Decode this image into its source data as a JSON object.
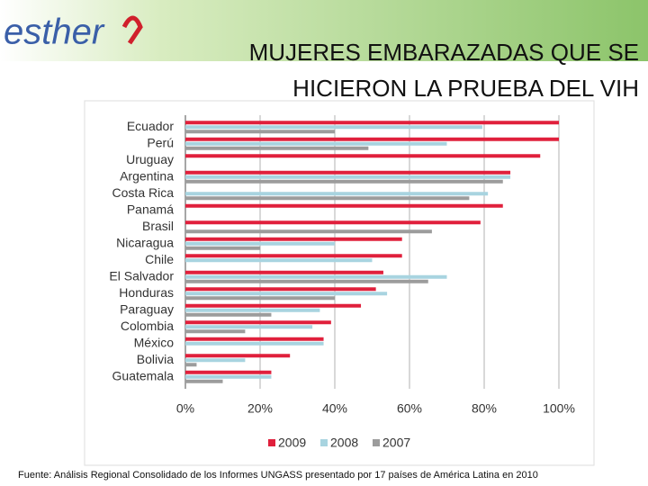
{
  "logo": "esther",
  "chart_data": {
    "type": "barh",
    "title": [
      "MUJERES EMBARAZADAS QUE SE",
      "HICIERON LA PRUEBA DEL VIH"
    ],
    "source": "Fuente: Análisis Regional Consolidado de los Informes UNGASS presentado por 17 países de América Latina en 2010",
    "categories": [
      "Ecuador",
      "Perú",
      "Uruguay",
      "Argentina",
      "Costa Rica",
      "Panamá",
      "Brasil",
      "Nicaragua",
      "Chile",
      "El Salvador",
      "Honduras",
      "Paraguay",
      "Colombia",
      "México",
      "Bolivia",
      "Guatemala"
    ],
    "series": [
      {
        "name": "2009",
        "color": "#e0203c",
        "values": [
          100,
          100,
          95,
          87,
          null,
          85,
          79,
          58,
          58,
          53,
          51,
          47,
          39,
          37,
          28,
          23
        ]
      },
      {
        "name": "2008",
        "color": "#a8d4e0",
        "values": [
          79.5,
          70,
          null,
          87,
          81,
          null,
          null,
          40,
          50,
          70,
          54,
          36,
          34,
          37,
          16,
          23
        ]
      },
      {
        "name": "2007",
        "color": "#9c9c9c",
        "values": [
          40,
          49,
          null,
          85,
          76,
          null,
          66,
          20,
          null,
          65,
          40,
          23,
          16,
          null,
          3,
          10
        ]
      }
    ],
    "xlim": [
      0,
      100
    ],
    "xticks": [
      {
        "value": 0,
        "label": "0%"
      },
      {
        "value": 20,
        "label": "20%"
      },
      {
        "value": 40,
        "label": "40%"
      },
      {
        "value": 60,
        "label": "60%"
      },
      {
        "value": 80,
        "label": "80%"
      },
      {
        "value": 100,
        "label": "100%"
      }
    ],
    "grid": true,
    "legend": "bottom"
  }
}
